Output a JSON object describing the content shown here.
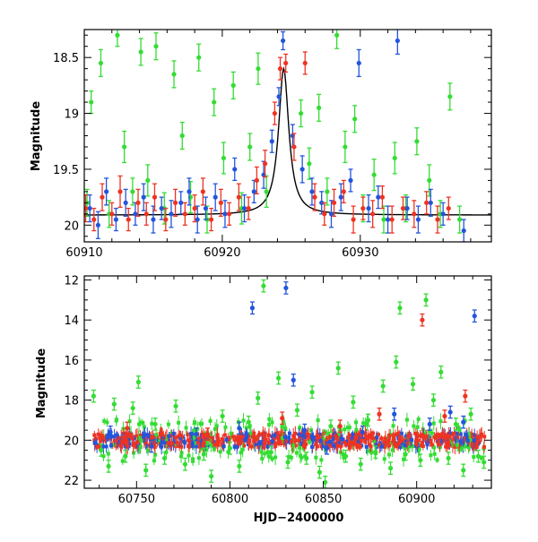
{
  "chart_data": [
    {
      "type": "scatter",
      "panel": "top",
      "title": "",
      "xlabel": "",
      "ylabel": "Magnitude",
      "xlim": [
        60910,
        60939.5
      ],
      "ylim": [
        20.15,
        18.25
      ],
      "y_inverted": true,
      "xticks": [
        60910,
        60920,
        60930
      ],
      "yticks": [
        18.5,
        19,
        19.5,
        20
      ],
      "ytick_labels": [
        "18.5",
        "19",
        "19.5",
        "20"
      ],
      "series": [
        {
          "color": "#33dd33",
          "points": [
            [
              60910.2,
              19.8,
              0.12
            ],
            [
              60910.5,
              18.9,
              0.1
            ],
            [
              60911.2,
              18.55,
              0.12
            ],
            [
              60911.8,
              19.9,
              0.12
            ],
            [
              60912.4,
              18.3,
              0.1
            ],
            [
              60912.9,
              19.3,
              0.14
            ],
            [
              60913.5,
              19.7,
              0.12
            ],
            [
              60914.1,
              18.45,
              0.12
            ],
            [
              60914.6,
              19.6,
              0.14
            ],
            [
              60915.2,
              18.4,
              0.12
            ],
            [
              60915.8,
              19.85,
              0.14
            ],
            [
              60916.5,
              18.65,
              0.12
            ],
            [
              60917.1,
              19.2,
              0.12
            ],
            [
              60917.7,
              19.75,
              0.14
            ],
            [
              60918.3,
              18.5,
              0.12
            ],
            [
              60918.9,
              19.95,
              0.12
            ],
            [
              60919.4,
              18.9,
              0.12
            ],
            [
              60920.1,
              19.4,
              0.14
            ],
            [
              60920.8,
              18.75,
              0.12
            ],
            [
              60921.4,
              19.85,
              0.14
            ],
            [
              60922.0,
              19.3,
              0.12
            ],
            [
              60922.6,
              18.6,
              0.14
            ],
            [
              60923.2,
              19.7,
              0.14
            ],
            [
              60925.7,
              19.0,
              0.12
            ],
            [
              60926.3,
              19.45,
              0.14
            ],
            [
              60927.0,
              18.95,
              0.12
            ],
            [
              60927.6,
              19.7,
              0.12
            ],
            [
              60928.3,
              18.3,
              0.12
            ],
            [
              60928.9,
              19.3,
              0.14
            ],
            [
              60929.6,
              19.05,
              0.12
            ],
            [
              60930.2,
              19.85,
              0.12
            ],
            [
              60931.0,
              19.55,
              0.14
            ],
            [
              60931.7,
              19.95,
              0.12
            ],
            [
              60932.5,
              19.4,
              0.14
            ],
            [
              60933.3,
              19.85,
              0.12
            ],
            [
              60934.1,
              19.25,
              0.12
            ],
            [
              60935.0,
              19.6,
              0.14
            ],
            [
              60935.8,
              19.9,
              0.12
            ],
            [
              60936.5,
              18.85,
              0.12
            ],
            [
              60937.2,
              19.95,
              0.12
            ]
          ]
        },
        {
          "color": "#2255dd",
          "points": [
            [
              60910.4,
              19.85,
              0.12
            ],
            [
              60911.0,
              20.0,
              0.12
            ],
            [
              60911.6,
              19.7,
              0.12
            ],
            [
              60912.3,
              19.95,
              0.1
            ],
            [
              60913.0,
              19.8,
              0.12
            ],
            [
              60913.7,
              19.9,
              0.1
            ],
            [
              60914.3,
              19.75,
              0.12
            ],
            [
              60915.0,
              19.95,
              0.12
            ],
            [
              60915.6,
              19.85,
              0.1
            ],
            [
              60916.3,
              19.9,
              0.12
            ],
            [
              60917.0,
              19.8,
              0.1
            ],
            [
              60917.6,
              19.7,
              0.12
            ],
            [
              60918.2,
              19.95,
              0.12
            ],
            [
              60918.8,
              19.85,
              0.1
            ],
            [
              60919.5,
              19.75,
              0.12
            ],
            [
              60920.2,
              19.9,
              0.12
            ],
            [
              60920.9,
              19.5,
              0.1
            ],
            [
              60921.6,
              19.85,
              0.12
            ],
            [
              60922.3,
              19.7,
              0.1
            ],
            [
              60923.0,
              19.55,
              0.12
            ],
            [
              60923.6,
              19.25,
              0.1
            ],
            [
              60924.1,
              18.85,
              0.08
            ],
            [
              60924.4,
              18.35,
              0.08
            ],
            [
              60925.1,
              19.2,
              0.1
            ],
            [
              60925.8,
              19.5,
              0.12
            ],
            [
              60926.5,
              19.7,
              0.12
            ],
            [
              60927.2,
              19.8,
              0.1
            ],
            [
              60927.9,
              19.9,
              0.12
            ],
            [
              60928.6,
              19.75,
              0.12
            ],
            [
              60929.3,
              19.6,
              0.1
            ],
            [
              60929.9,
              18.55,
              0.12
            ],
            [
              60930.6,
              19.85,
              0.12
            ],
            [
              60931.3,
              19.75,
              0.1
            ],
            [
              60932.0,
              19.95,
              0.12
            ],
            [
              60932.7,
              18.35,
              0.12
            ],
            [
              60933.4,
              19.85,
              0.1
            ],
            [
              60934.2,
              19.95,
              0.12
            ],
            [
              60935.1,
              19.8,
              0.12
            ],
            [
              60936.0,
              19.9,
              0.1
            ],
            [
              60937.5,
              20.05,
              0.1
            ]
          ]
        },
        {
          "color": "#ee3322",
          "points": [
            [
              60910.1,
              19.85,
              0.12
            ],
            [
              60910.7,
              19.95,
              0.1
            ],
            [
              60911.3,
              19.75,
              0.12
            ],
            [
              60912.0,
              19.9,
              0.1
            ],
            [
              60912.6,
              19.7,
              0.14
            ],
            [
              60913.2,
              19.95,
              0.1
            ],
            [
              60913.9,
              19.8,
              0.12
            ],
            [
              60914.5,
              19.9,
              0.1
            ],
            [
              60915.1,
              19.75,
              0.12
            ],
            [
              60915.9,
              19.95,
              0.1
            ],
            [
              60916.6,
              19.8,
              0.12
            ],
            [
              60917.3,
              19.9,
              0.1
            ],
            [
              60918.0,
              19.85,
              0.12
            ],
            [
              60918.6,
              19.7,
              0.12
            ],
            [
              60919.2,
              19.95,
              0.1
            ],
            [
              60919.9,
              19.8,
              0.12
            ],
            [
              60920.5,
              19.9,
              0.1
            ],
            [
              60921.2,
              19.75,
              0.12
            ],
            [
              60921.9,
              19.85,
              0.1
            ],
            [
              60922.5,
              19.6,
              0.12
            ],
            [
              60923.1,
              19.45,
              0.12
            ],
            [
              60923.8,
              19.0,
              0.1
            ],
            [
              60924.2,
              18.6,
              0.1
            ],
            [
              60924.6,
              18.55,
              0.08
            ],
            [
              60925.2,
              19.3,
              0.12
            ],
            [
              60926.0,
              18.55,
              0.1
            ],
            [
              60926.7,
              19.75,
              0.12
            ],
            [
              60927.4,
              19.9,
              0.1
            ],
            [
              60928.1,
              19.8,
              0.12
            ],
            [
              60928.8,
              19.7,
              0.1
            ],
            [
              60929.5,
              19.95,
              0.12
            ],
            [
              60930.2,
              19.85,
              0.1
            ],
            [
              60930.9,
              19.9,
              0.12
            ],
            [
              60931.6,
              19.75,
              0.1
            ],
            [
              60932.3,
              19.95,
              0.12
            ],
            [
              60933.1,
              19.85,
              0.1
            ],
            [
              60933.9,
              19.9,
              0.12
            ],
            [
              60934.8,
              19.8,
              0.1
            ],
            [
              60935.6,
              19.95,
              0.12
            ],
            [
              60936.4,
              19.85,
              0.1
            ]
          ]
        }
      ],
      "model_curve": {
        "color": "#000000",
        "baseline": 19.91,
        "peak_x": 60924.45,
        "peak_mag": 18.6,
        "width": 0.45
      }
    },
    {
      "type": "scatter",
      "panel": "bottom",
      "title": "",
      "xlabel": "HJD−2400000",
      "ylabel": "Magnitude",
      "xlim": [
        60722,
        60940
      ],
      "ylim": [
        22.4,
        11.8
      ],
      "y_inverted": true,
      "xticks": [
        60750,
        60800,
        60850,
        60900
      ],
      "yticks": [
        12,
        14,
        16,
        18,
        20,
        22
      ],
      "band": {
        "x_from": 60727,
        "x_to": 60937,
        "center_mag": 20.0,
        "scatter_mag": 0.35
      },
      "series": [
        {
          "color": "#33dd33",
          "points": [
            [
              60727,
              17.8
            ],
            [
              60731,
              20.5
            ],
            [
              60735,
              21.3
            ],
            [
              60738,
              18.2
            ],
            [
              60744,
              20.8
            ],
            [
              60748,
              18.4
            ],
            [
              60751,
              17.1
            ],
            [
              60755,
              21.5
            ],
            [
              60760,
              19.2
            ],
            [
              60765,
              20.9
            ],
            [
              60771,
              18.3
            ],
            [
              60776,
              21.2
            ],
            [
              60781,
              19.5
            ],
            [
              60786,
              20.7
            ],
            [
              60790,
              21.8
            ],
            [
              60796,
              18.8
            ],
            [
              60800,
              20.4
            ],
            [
              60805,
              21.3
            ],
            [
              60810,
              19.1
            ],
            [
              60815,
              17.9
            ],
            [
              60818,
              12.3
            ],
            [
              60822,
              20.6
            ],
            [
              60826,
              16.9
            ],
            [
              60831,
              21.1
            ],
            [
              60836,
              18.5
            ],
            [
              60841,
              20.9
            ],
            [
              60844,
              17.6
            ],
            [
              60848,
              21.6
            ],
            [
              60851,
              22.1
            ],
            [
              60854,
              19.3
            ],
            [
              60858,
              16.4
            ],
            [
              60862,
              20.8
            ],
            [
              60866,
              18.1
            ],
            [
              60870,
              21.2
            ],
            [
              60874,
              19.0
            ],
            [
              60878,
              20.6
            ],
            [
              60882,
              17.3
            ],
            [
              60886,
              21.4
            ],
            [
              60889,
              16.1
            ],
            [
              60891,
              13.4
            ],
            [
              60894,
              20.7
            ],
            [
              60898,
              17.2
            ],
            [
              60902,
              21.0
            ],
            [
              60905,
              13.0
            ],
            [
              60909,
              18.0
            ],
            [
              60913,
              16.6
            ],
            [
              60917,
              20.9
            ],
            [
              60921,
              19.2
            ],
            [
              60925,
              21.5
            ],
            [
              60929,
              18.7
            ],
            [
              60933,
              20.8
            ],
            [
              60936,
              21.1
            ]
          ]
        },
        {
          "color": "#2255dd",
          "points": [
            [
              60736,
              19.6
            ],
            [
              60758,
              20.3
            ],
            [
              60782,
              19.7
            ],
            [
              60805,
              19.4
            ],
            [
              60812,
              13.4
            ],
            [
              60830,
              12.4
            ],
            [
              60834,
              17.0
            ],
            [
              60840,
              19.5
            ],
            [
              60852,
              20.4
            ],
            [
              60871,
              19.6
            ],
            [
              60888,
              18.7
            ],
            [
              60907,
              19.2
            ],
            [
              60918,
              18.6
            ],
            [
              60925,
              19.1
            ],
            [
              60931,
              13.8
            ]
          ]
        },
        {
          "color": "#ee3322",
          "points": [
            [
              60745,
              19.4
            ],
            [
              60788,
              19.7
            ],
            [
              60828,
              18.9
            ],
            [
              60859,
              19.3
            ],
            [
              60880,
              18.7
            ],
            [
              60903,
              14.0
            ],
            [
              60915,
              18.8
            ],
            [
              60926,
              17.8
            ]
          ]
        }
      ]
    }
  ]
}
